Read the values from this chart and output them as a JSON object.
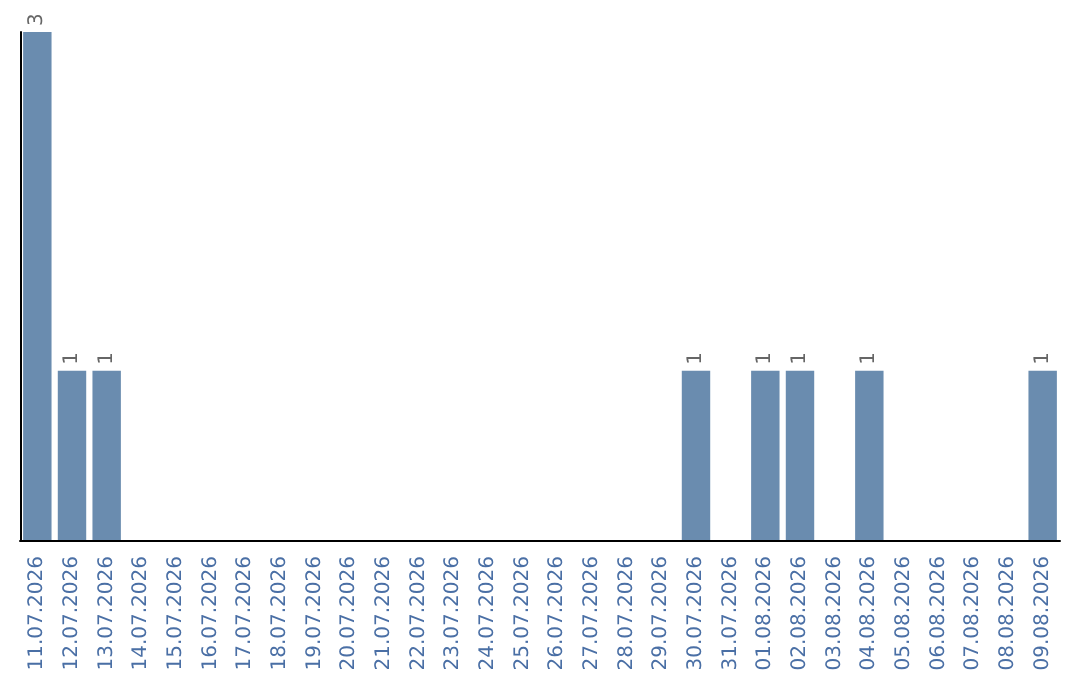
{
  "chart_data": {
    "type": "bar",
    "tick_labels": "x",
    "categories": [
      "11.07.2026",
      "12.07.2026",
      "13.07.2026",
      "14.07.2026",
      "15.07.2026",
      "16.07.2026",
      "17.07.2026",
      "18.07.2026",
      "19.07.2026",
      "20.07.2026",
      "21.07.2026",
      "22.07.2026",
      "23.07.2026",
      "24.07.2026",
      "25.07.2026",
      "26.07.2026",
      "27.07.2026",
      "28.07.2026",
      "29.07.2026",
      "30.07.2026",
      "31.07.2026",
      "01.08.2026",
      "02.08.2026",
      "03.08.2026",
      "04.08.2026",
      "05.08.2026",
      "06.08.2026",
      "07.08.2026",
      "08.08.2026",
      "09.08.2026"
    ],
    "values": [
      3,
      1,
      1,
      0,
      0,
      0,
      0,
      0,
      0,
      0,
      0,
      0,
      0,
      0,
      0,
      0,
      0,
      0,
      0,
      1,
      0,
      1,
      1,
      0,
      1,
      0,
      0,
      0,
      0,
      1
    ],
    "value_labels": [
      "3",
      "1",
      "1",
      null,
      null,
      null,
      null,
      null,
      null,
      null,
      null,
      null,
      null,
      null,
      null,
      null,
      null,
      null,
      null,
      "1",
      null,
      "1",
      "1",
      null,
      "1",
      null,
      null,
      null,
      null,
      "1"
    ],
    "color": "#6a8caf"
  }
}
